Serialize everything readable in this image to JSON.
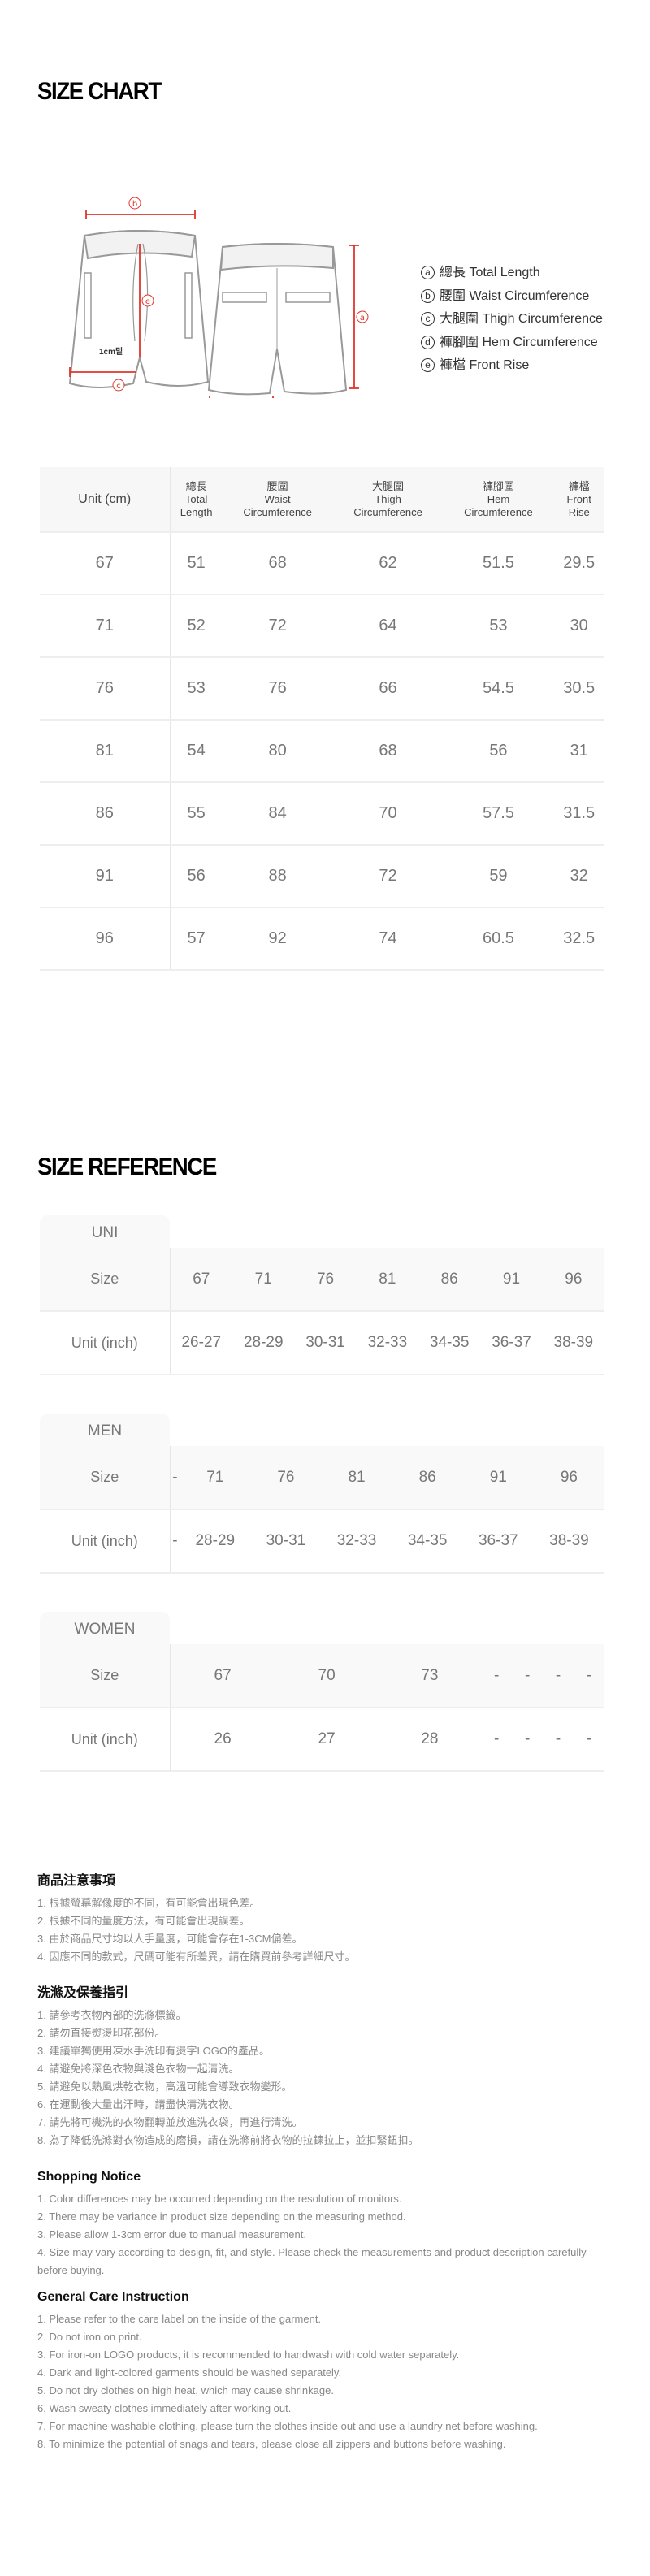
{
  "size_chart": {
    "title": "SIZE CHART",
    "diagram": {
      "label_1cm": "1cm밑",
      "marker_color": "#e0352b"
    },
    "legend": [
      {
        "mark": "a",
        "label": "總長 Total Length"
      },
      {
        "mark": "b",
        "label": "腰圍 Waist Circumference"
      },
      {
        "mark": "c",
        "label": "大腿圍 Thigh Circumference"
      },
      {
        "mark": "d",
        "label": "褲腳圍 Hem Circumference"
      },
      {
        "mark": "e",
        "label": "褲檔 Front Rise"
      }
    ],
    "table": {
      "unit_header": "Unit (cm)",
      "columns": [
        {
          "zh": "總長",
          "en1": "Total",
          "en2": "Length"
        },
        {
          "zh": "腰圍",
          "en1": "Waist",
          "en2": "Circumference"
        },
        {
          "zh": "大腿圍",
          "en1": "Thigh",
          "en2": "Circumference"
        },
        {
          "zh": "褲腳圍",
          "en1": "Hem",
          "en2": "Circumference"
        },
        {
          "zh": "褲檔",
          "en1": "Front",
          "en2": "Rise"
        }
      ],
      "rows": [
        [
          "67",
          "51",
          "68",
          "62",
          "51.5",
          "29.5"
        ],
        [
          "71",
          "52",
          "72",
          "64",
          "53",
          "30"
        ],
        [
          "76",
          "53",
          "76",
          "66",
          "54.5",
          "30.5"
        ],
        [
          "81",
          "54",
          "80",
          "68",
          "56",
          "31"
        ],
        [
          "86",
          "55",
          "84",
          "70",
          "57.5",
          "31.5"
        ],
        [
          "91",
          "56",
          "88",
          "72",
          "59",
          "32"
        ],
        [
          "96",
          "57",
          "92",
          "74",
          "60.5",
          "32.5"
        ]
      ]
    }
  },
  "size_reference": {
    "title": "SIZE REFERENCE",
    "size_label": "Size",
    "unit_label": "Unit (inch)",
    "groups": [
      {
        "name": "UNI",
        "sizes": [
          "67",
          "71",
          "76",
          "81",
          "86",
          "91",
          "96"
        ],
        "inches": [
          "26-27",
          "28-29",
          "30-31",
          "32-33",
          "34-35",
          "36-37",
          "38-39"
        ]
      },
      {
        "name": "MEN",
        "sizes": [
          "-",
          "71",
          "76",
          "81",
          "86",
          "91",
          "96"
        ],
        "inches": [
          "-",
          "28-29",
          "30-31",
          "32-33",
          "34-35",
          "36-37",
          "38-39"
        ]
      },
      {
        "name": "WOMEN",
        "sizes": [
          "67",
          "70",
          "73",
          "-",
          "-",
          "-",
          "-"
        ],
        "inches": [
          "26",
          "27",
          "28",
          "-",
          "-",
          "-",
          "-"
        ]
      }
    ]
  },
  "notes": [
    {
      "title": "商品注意事項",
      "items": [
        "1. 根據螢幕解像度的不同，有可能會出現色差。",
        "2. 根據不同的量度方法，有可能會出現誤差。",
        "3. 由於商品尺寸均以人手量度，可能會存在1-3CM偏差。",
        "4. 因應不同的款式，尺碼可能有所差異，請在購買前參考詳細尺寸。"
      ]
    },
    {
      "title": "洗滌及保養指引",
      "items": [
        "1. 請參考衣物內部的洗滌標籤。",
        "2. 請勿直接熨燙印花部份。",
        "3. 建議單獨使用凍水手洗印有燙字LOGO的產品。",
        "4. 請避免將深色衣物與淺色衣物一起清洗。",
        "5. 請避免以熱風烘乾衣物，高溫可能會導致衣物變形。",
        "6. 在運動後大量出汗時，請盡快清洗衣物。",
        "7. 請先將可機洗的衣物翻轉並放進洗衣袋，再進行清洗。",
        "8. 為了降低洗滌對衣物造成的磨損，請在洗滌前將衣物的拉鍊拉上，並扣緊鈕扣。"
      ]
    },
    {
      "title": "Shopping Notice",
      "items": [
        "1. Color differences may be occurred depending on the resolution of monitors.",
        "2. There may be variance in product size depending on the measuring method.",
        "3. Please allow 1-3cm error due to manual measurement.",
        "4. Size may vary according to design, fit, and style. Please check the measurements and product description carefully before buying."
      ]
    },
    {
      "title": "General Care Instruction",
      "items": [
        "1. Please refer to the care label on the inside of the garment.",
        "2. Do not iron on print.",
        "3. For iron-on LOGO products, it is recommended to handwash with cold water separately.",
        "4. Dark and light-colored garments should be washed separately.",
        "5. Do not dry clothes on high heat, which may cause shrinkage.",
        "6. Wash sweaty clothes immediately after working out.",
        "7. For machine-washable clothing, please turn the clothes inside out and use a laundry net before washing.",
        "8. To minimize the potential of snags and tears, please close all zippers and buttons before washing."
      ]
    }
  ]
}
